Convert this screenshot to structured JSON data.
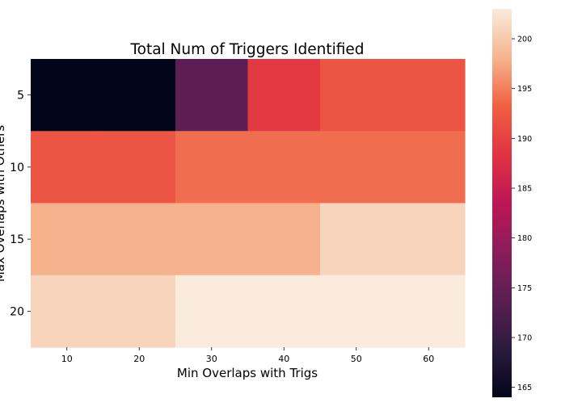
{
  "chart_data": {
    "type": "heatmap",
    "title": "Total Num of Triggers Identified",
    "xlabel": "Min Overlaps with Trigs",
    "ylabel": "Max Overlaps with Others",
    "x_ticks": [
      "10",
      "20",
      "30",
      "40",
      "50",
      "60"
    ],
    "y_ticks": [
      "5",
      "10",
      "15",
      "20"
    ],
    "values": [
      [
        164,
        164,
        174,
        189,
        192,
        192
      ],
      [
        192,
        192,
        194,
        194,
        194,
        194
      ],
      [
        198,
        198,
        198,
        198,
        201,
        201
      ],
      [
        201,
        201,
        203,
        203,
        203,
        203
      ]
    ],
    "colorbar": {
      "min": 164,
      "max": 203,
      "ticks": [
        "165",
        "170",
        "175",
        "180",
        "185",
        "190",
        "195",
        "200"
      ]
    },
    "colormap": "rocket"
  }
}
